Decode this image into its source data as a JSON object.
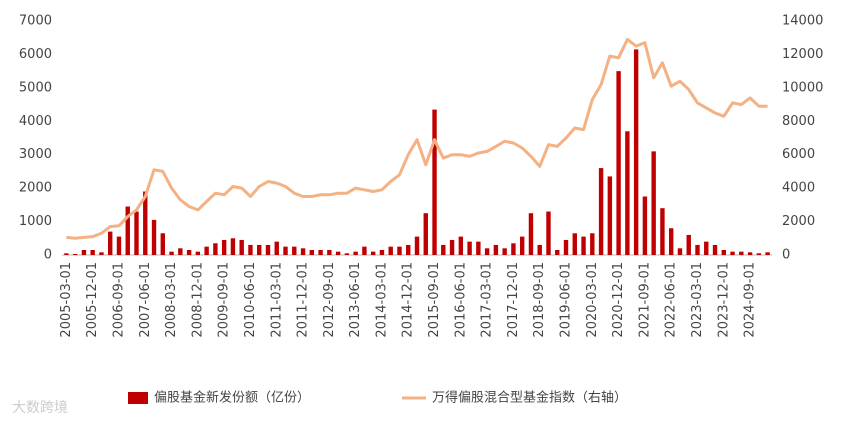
{
  "chart_data": {
    "type": "bar_line",
    "watermark": "大数跨境",
    "categories": [
      "2005-03-01",
      null,
      null,
      "2005-12-01",
      null,
      null,
      "2006-09-01",
      null,
      null,
      "2007-06-01",
      null,
      null,
      "2008-03-01",
      null,
      null,
      "2008-12-01",
      null,
      null,
      "2009-09-01",
      null,
      null,
      "2010-06-01",
      null,
      null,
      "2011-03-01",
      null,
      null,
      "2011-12-01",
      null,
      null,
      "2012-09-01",
      null,
      null,
      "2013-06-01",
      null,
      null,
      "2014-03-01",
      null,
      null,
      "2014-12-01",
      null,
      null,
      "2015-09-01",
      null,
      null,
      "2016-06-01",
      null,
      null,
      "2017-03-01",
      null,
      null,
      "2017-12-01",
      null,
      null,
      "2018-09-01",
      null,
      null,
      "2019-06-01",
      null,
      null,
      "2020-03-01",
      null,
      null,
      "2020-12-01",
      null,
      null,
      "2021-09-01",
      null,
      null,
      "2022-06-01",
      null,
      null,
      "2023-03-01",
      null,
      null,
      "2023-12-01",
      null,
      null,
      "2024-09-01",
      null,
      null
    ],
    "series": [
      {
        "name": "偏股基金新发份额（亿份）",
        "color": "#c00000",
        "type": "bar",
        "values": [
          50,
          30,
          150,
          150,
          80,
          700,
          550,
          1450,
          1300,
          1900,
          1050,
          650,
          100,
          200,
          150,
          100,
          250,
          350,
          450,
          500,
          450,
          300,
          300,
          300,
          400,
          250,
          250,
          200,
          150,
          150,
          150,
          100,
          50,
          100,
          250,
          100,
          150,
          250,
          250,
          300,
          550,
          1250,
          4350,
          300,
          450,
          550,
          400,
          400,
          200,
          300,
          200,
          350,
          550,
          1250,
          300,
          1300,
          150,
          450,
          650,
          550,
          650,
          2600,
          2350,
          5500,
          3700,
          6150,
          1750,
          3100,
          1400,
          800,
          200,
          600,
          300,
          400,
          300,
          150,
          100,
          100,
          80,
          50,
          80
        ]
      },
      {
        "name": "万得偏股混合型基金指数（右轴）",
        "color": "#f4b183",
        "type": "line",
        "axis": "y2",
        "values": [
          1050,
          1000,
          1050,
          1100,
          1300,
          1700,
          1750,
          2300,
          2700,
          3500,
          5100,
          5000,
          4000,
          3300,
          2900,
          2700,
          3200,
          3700,
          3600,
          4100,
          4000,
          3500,
          4100,
          4400,
          4300,
          4100,
          3700,
          3500,
          3500,
          3600,
          3600,
          3700,
          3700,
          4000,
          3900,
          3800,
          3900,
          4400,
          4800,
          6000,
          6900,
          5400,
          6900,
          5800,
          6000,
          6000,
          5900,
          6100,
          6200,
          6500,
          6800,
          6700,
          6400,
          5900,
          5300,
          6600,
          6500,
          7000,
          7600,
          7500,
          9300,
          10200,
          11900,
          11800,
          12900,
          12500,
          12700,
          10600,
          11500,
          10100,
          10400,
          9900,
          9100,
          8800,
          8500,
          8300,
          9100,
          9000,
          9400,
          8900,
          8900
        ]
      }
    ],
    "ylim": [
      0,
      7000
    ],
    "yticks": [
      0,
      1000,
      2000,
      3000,
      4000,
      5000,
      6000,
      7000
    ],
    "y2lim": [
      0,
      14000
    ],
    "y2ticks": [
      0,
      2000,
      4000,
      6000,
      8000,
      10000,
      12000,
      14000
    ],
    "legend": "bottom"
  }
}
